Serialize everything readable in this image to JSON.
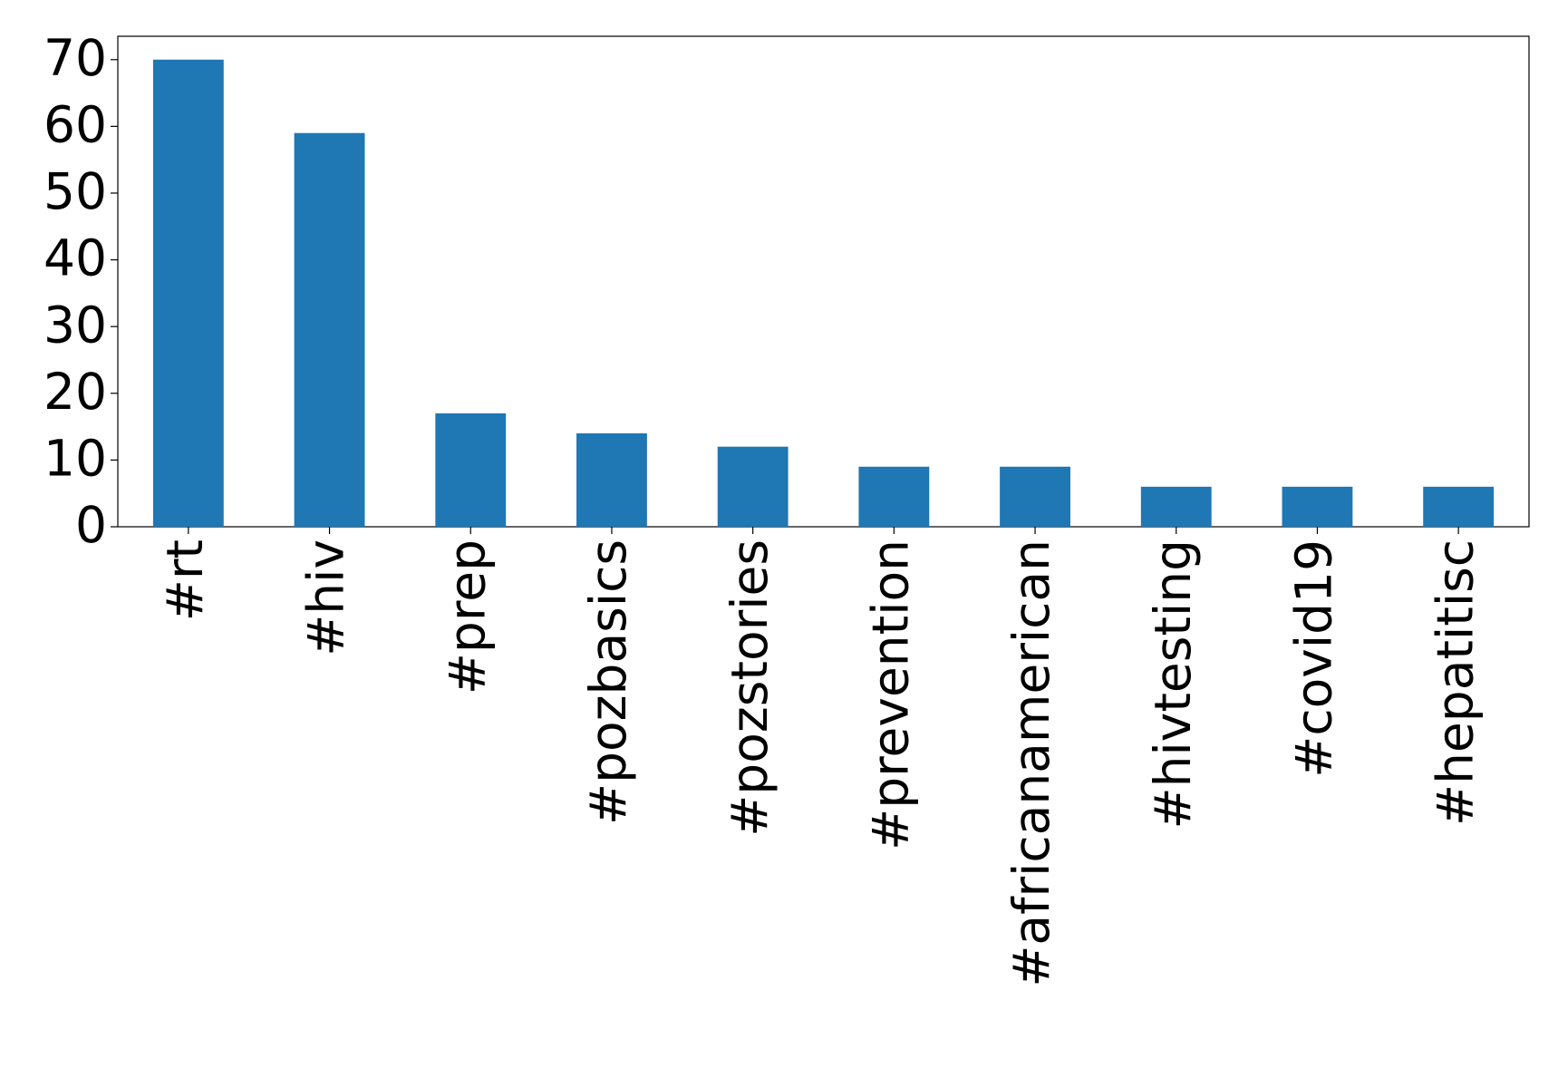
{
  "chart_data": {
    "type": "bar",
    "categories": [
      "#rt",
      "#hiv",
      "#prep",
      "#pozbasics",
      "#pozstories",
      "#prevention",
      "#africanamerican",
      "#hivtesting",
      "#covid19",
      "#hepatitisc"
    ],
    "values": [
      70,
      59,
      17,
      14,
      12,
      9,
      9,
      6,
      6,
      6
    ],
    "color": "#1f77b4",
    "ylim": [
      0,
      73.5
    ],
    "yticks": [
      0,
      10,
      20,
      30,
      40,
      50,
      60,
      70
    ],
    "grid": false
  }
}
